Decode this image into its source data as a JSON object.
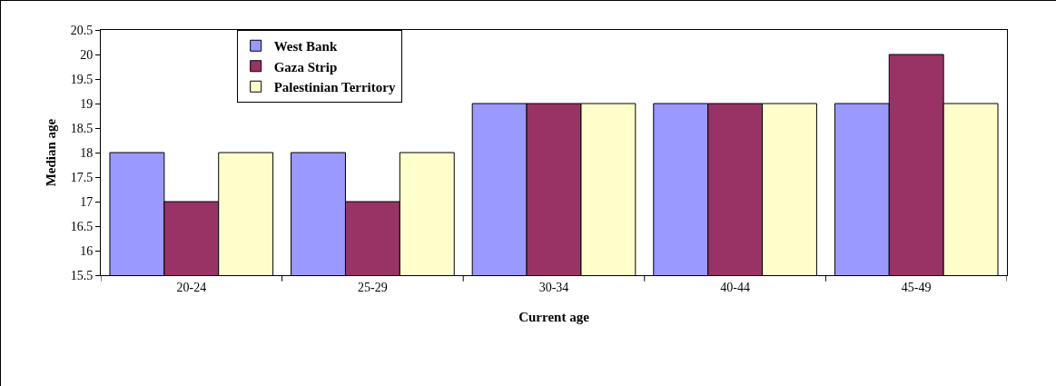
{
  "chart_data": {
    "type": "bar",
    "xlabel": "Current age",
    "ylabel": "Median age",
    "categories": [
      "20-24",
      "25-29",
      "30-34",
      "40-44",
      "45-49"
    ],
    "series": [
      {
        "name": "West Bank",
        "color": "#9999ff",
        "values": [
          18,
          18,
          19,
          19,
          19
        ]
      },
      {
        "name": "Gaza Strip",
        "color": "#993366",
        "values": [
          17,
          17,
          19,
          19,
          20
        ]
      },
      {
        "name": "Palestinian Territory",
        "color": "#ffffcc",
        "values": [
          18,
          18,
          19,
          19,
          19
        ]
      }
    ],
    "ylim": [
      15.5,
      20.5
    ],
    "yticks": [
      15.5,
      16,
      16.5,
      17,
      17.5,
      18,
      18.5,
      19,
      19.5,
      20,
      20.5
    ],
    "legend": "top left"
  }
}
